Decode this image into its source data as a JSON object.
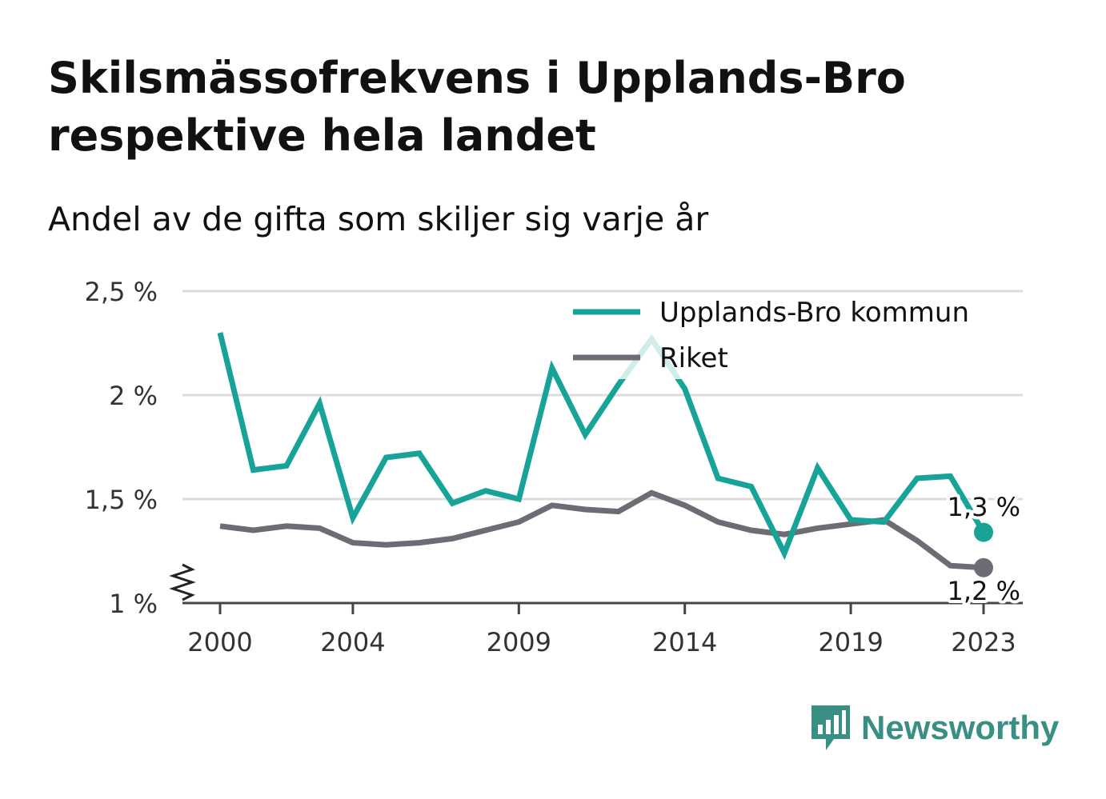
{
  "chart_data": {
    "type": "line",
    "title": "Skilsmässofrekvens i Upplands-Bro respektive hela landet",
    "subtitle": "Andel av de gifta som skiljer sig varje år",
    "x": [
      2000,
      2001,
      2002,
      2003,
      2004,
      2005,
      2006,
      2007,
      2008,
      2009,
      2010,
      2011,
      2012,
      2013,
      2014,
      2015,
      2016,
      2017,
      2018,
      2019,
      2020,
      2021,
      2022,
      2023
    ],
    "x_ticks": [
      2000,
      2004,
      2009,
      2014,
      2019,
      2023
    ],
    "y_ticks": [
      {
        "value": 1.0,
        "label": "1 %"
      },
      {
        "value": 1.5,
        "label": "1,5 %"
      },
      {
        "value": 2.0,
        "label": "2 %"
      },
      {
        "value": 2.5,
        "label": "2,5 %"
      }
    ],
    "ylim": [
      1.0,
      2.5
    ],
    "y_axis_break": true,
    "grid": true,
    "legend_position": "top-right",
    "series": [
      {
        "name": "Upplands-Bro kommun",
        "color": "#17a398",
        "values": [
          2.3,
          1.64,
          1.66,
          1.96,
          1.41,
          1.7,
          1.72,
          1.48,
          1.54,
          1.5,
          2.13,
          1.81,
          2.05,
          2.27,
          2.03,
          1.6,
          1.56,
          1.24,
          1.65,
          1.4,
          1.39,
          1.6,
          1.61,
          1.34
        ],
        "end_label": "1,3 %"
      },
      {
        "name": "Riket",
        "color": "#6e6b74",
        "values": [
          1.37,
          1.35,
          1.37,
          1.36,
          1.29,
          1.28,
          1.29,
          1.31,
          1.35,
          1.39,
          1.47,
          1.45,
          1.44,
          1.53,
          1.47,
          1.39,
          1.35,
          1.33,
          1.36,
          1.38,
          1.4,
          1.3,
          1.18,
          1.17
        ],
        "end_label": "1,2 %"
      }
    ]
  },
  "brand": {
    "name": "Newsworthy",
    "color": "#3a8f84",
    "icon": "bar-chart-speech-bubble-icon"
  }
}
